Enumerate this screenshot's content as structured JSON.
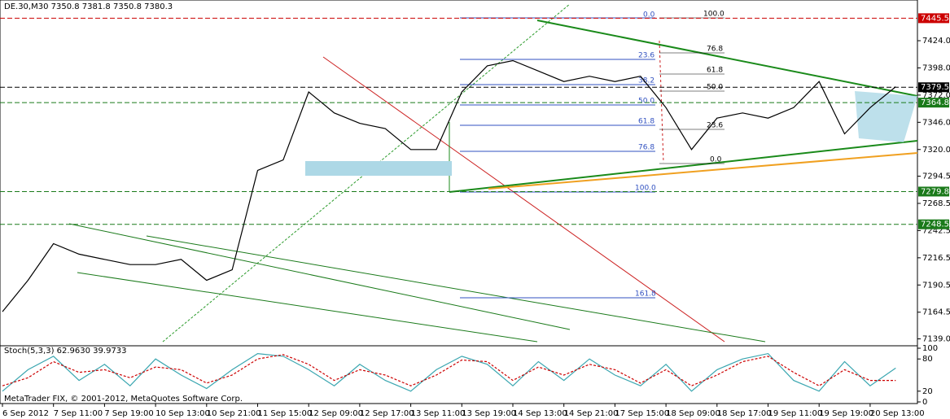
{
  "chart_data": [
    {
      "type": "line",
      "title": "DE.30,M30  7350.8 7381.8 7350.8 7380.3",
      "categories": [
        "6 Sep 2012",
        null,
        "7 Sep 11:00",
        null,
        "7 Sep 19:00",
        null,
        "10 Sep 13:00",
        null,
        "10 Sep 21:00",
        null,
        "11 Sep 15:00",
        null,
        "12 Sep 09:00",
        null,
        "12 Sep 17:00",
        null,
        "13 Sep 11:00",
        null,
        "13 Sep 19:00",
        null,
        "14 Sep 13:00",
        null,
        "14 Sep 21:00",
        null,
        "17 Sep 15:00",
        null,
        "18 Sep 09:00",
        null,
        "18 Sep 17:00",
        null,
        "19 Sep 11:00",
        null,
        "19 Sep 19:00",
        null,
        "20 Sep 13:00",
        null
      ],
      "values": [
        7165,
        7195,
        7230,
        7220,
        7215,
        7210,
        7210,
        7215,
        7195,
        7205,
        7300,
        7310,
        7375,
        7355,
        7345,
        7340,
        7320,
        7320,
        7375,
        7400,
        7405,
        7395,
        7385,
        7390,
        7385,
        7390,
        7360,
        7320,
        7350,
        7355,
        7350,
        7360,
        7385,
        7335,
        7360,
        7380
      ],
      "color": "#000000",
      "ylim": [
        7132.4,
        7462.9
      ],
      "yticks": [
        {
          "value": 7424,
          "label": "7424.0"
        },
        {
          "value": 7398,
          "label": "7398.0"
        },
        {
          "value": 7372,
          "label": "7372.0"
        },
        {
          "value": 7346,
          "label": "7346.0"
        },
        {
          "value": 7320,
          "label": "7320.0"
        },
        7294.5,
        7268.5,
        7242.5,
        7216.5,
        7190.5,
        7164.5,
        {
          "value": 7139,
          "label": "7139.0"
        }
      ],
      "price_tags": [
        {
          "value": 7445.5,
          "color": "#cc0000"
        },
        {
          "value": 7379.5,
          "color": "#000000"
        },
        {
          "value": 7364.8,
          "color": "#1a7a1a"
        },
        {
          "value": 7279.8,
          "color": "#1a7a1a"
        },
        {
          "value": 7248.5,
          "color": "#1a7a1a"
        }
      ],
      "fib_left": [
        "0.0",
        "23.6",
        "38.2",
        "50.0",
        "61.8",
        "76.8",
        "100.0",
        "161.8"
      ],
      "fib_right": [
        "100.0",
        "76.8",
        "61.8",
        "50.0",
        "23.6",
        "0.0"
      ]
    },
    {
      "type": "line",
      "title": "Stoch(5,3,3) 62.9630 39.9733",
      "series": [
        {
          "color": "#3aa6b0",
          "values": [
            20,
            60,
            85,
            40,
            70,
            30,
            80,
            50,
            25,
            60,
            90,
            85,
            60,
            30,
            70,
            40,
            20,
            60,
            85,
            70,
            30,
            75,
            40,
            80,
            50,
            30,
            70,
            20,
            60,
            80,
            90,
            40,
            20,
            75,
            30,
            63
          ]
        },
        {
          "color": "#cc0000",
          "values": [
            30,
            45,
            75,
            55,
            60,
            45,
            65,
            60,
            35,
            50,
            80,
            88,
            70,
            40,
            60,
            50,
            30,
            50,
            78,
            75,
            40,
            65,
            50,
            70,
            60,
            35,
            60,
            30,
            50,
            75,
            85,
            55,
            30,
            60,
            40,
            40
          ]
        }
      ],
      "ylim": [
        0,
        100
      ],
      "yticks": [
        0,
        20,
        80,
        100
      ]
    }
  ],
  "footer": "MetaTrader FIX, © 2001-2012, MetaQuotes Software Corp."
}
